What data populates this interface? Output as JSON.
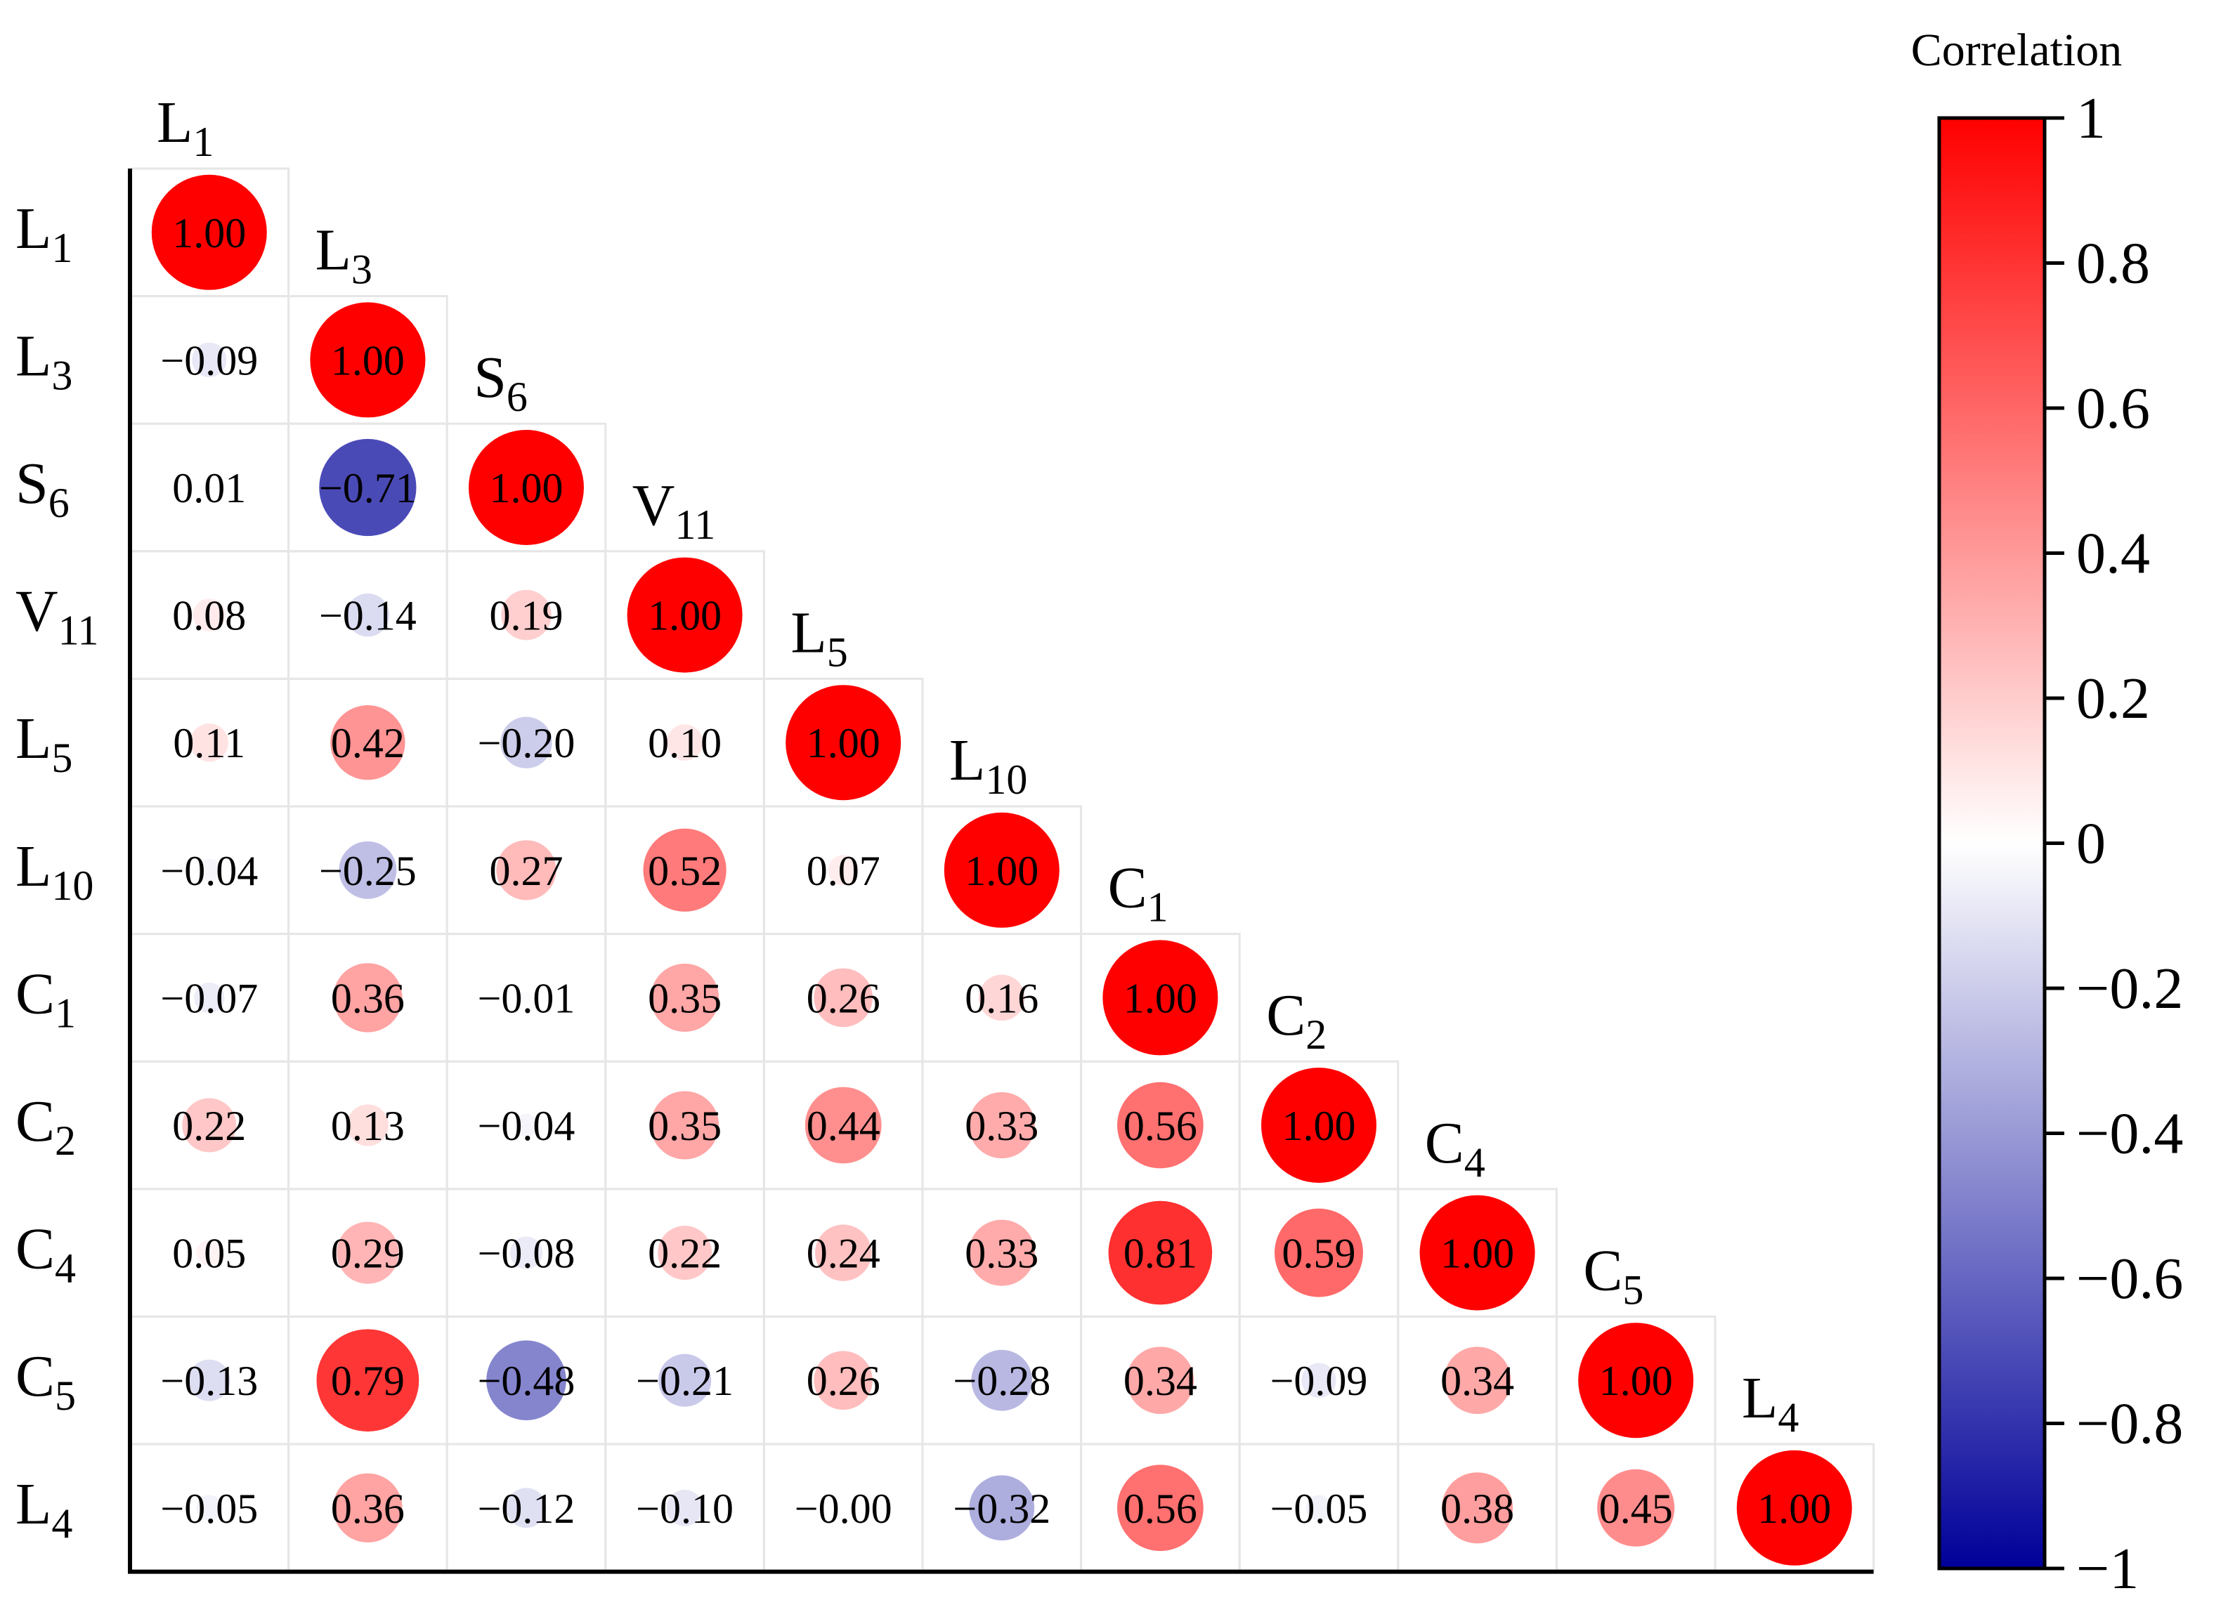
{
  "chart_data": {
    "type": "heatmap",
    "subtype": "lower-triangle correlation matrix with scaled circles",
    "variables": [
      {
        "base": "L",
        "sub": "1"
      },
      {
        "base": "L",
        "sub": "3"
      },
      {
        "base": "S",
        "sub": "6"
      },
      {
        "base": "V",
        "sub": "11"
      },
      {
        "base": "L",
        "sub": "5"
      },
      {
        "base": "L",
        "sub": "10"
      },
      {
        "base": "C",
        "sub": "1"
      },
      {
        "base": "C",
        "sub": "2"
      },
      {
        "base": "C",
        "sub": "4"
      },
      {
        "base": "C",
        "sub": "5"
      },
      {
        "base": "L",
        "sub": "4"
      }
    ],
    "matrix": [
      [
        1.0
      ],
      [
        -0.09,
        1.0
      ],
      [
        0.01,
        -0.71,
        1.0
      ],
      [
        0.08,
        -0.14,
        0.19,
        1.0
      ],
      [
        0.11,
        0.42,
        -0.2,
        0.1,
        1.0
      ],
      [
        -0.04,
        -0.25,
        0.27,
        0.52,
        0.07,
        1.0
      ],
      [
        -0.07,
        0.36,
        -0.01,
        0.35,
        0.26,
        0.16,
        1.0
      ],
      [
        0.22,
        0.13,
        -0.04,
        0.35,
        0.44,
        0.33,
        0.56,
        1.0
      ],
      [
        0.05,
        0.29,
        -0.08,
        0.22,
        0.24,
        0.33,
        0.81,
        0.59,
        1.0
      ],
      [
        -0.13,
        0.79,
        -0.48,
        -0.21,
        0.26,
        -0.28,
        0.34,
        -0.09,
        0.34,
        1.0
      ],
      [
        -0.05,
        0.36,
        -0.12,
        -0.1,
        -0.0,
        -0.32,
        0.56,
        -0.05,
        0.38,
        0.45,
        1.0
      ]
    ],
    "colorbar": {
      "title": "Correlation",
      "range": [
        -1,
        1
      ],
      "ticks": [
        1,
        0.8,
        0.6,
        0.4,
        0.2,
        0,
        -0.2,
        -0.4,
        -0.6,
        -0.8,
        -1
      ],
      "tick_labels": [
        "1",
        "0.8",
        "0.6",
        "0.4",
        "0.2",
        "0",
        "−0.2",
        "−0.4",
        "−0.6",
        "−0.8",
        "−1"
      ]
    },
    "colors": {
      "positive": "#ff0000",
      "zero": "#ffffff",
      "negative": "#000099",
      "grid": "#e6e6e6",
      "axis": "#000000"
    }
  }
}
